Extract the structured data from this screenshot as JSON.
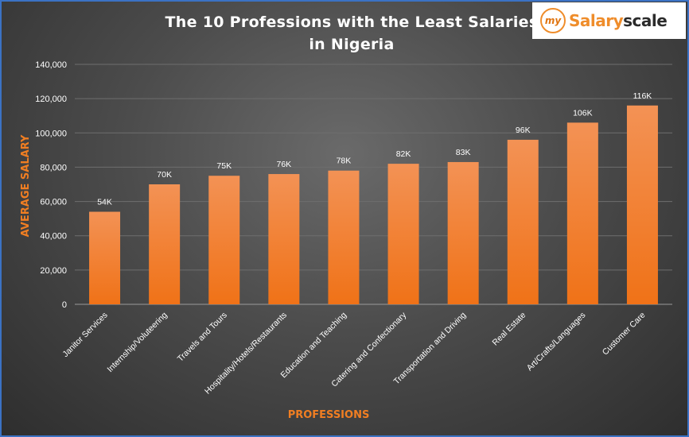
{
  "chart_data": {
    "type": "bar",
    "title_lines": [
      "The 10 Professions with the Least Salaries",
      "in Nigeria"
    ],
    "xlabel": "PROFESSIONS",
    "ylabel": "AVERAGE  SALARY",
    "categories": [
      "Janitor Services",
      "Internship/Voluteering",
      "Travels and Tours",
      "Hospitality/Hotels/Restaurants",
      "Education and Teaching",
      "Catering and Confectionary",
      "Transportation and Driving",
      "Real Estate",
      "Art/Crafts/Languages",
      "Customer Care"
    ],
    "values": [
      54000,
      70000,
      75000,
      76000,
      78000,
      82000,
      83000,
      96000,
      106000,
      116000
    ],
    "data_labels": [
      "54K",
      "70K",
      "75K",
      "76K",
      "78K",
      "82K",
      "83K",
      "96K",
      "106K",
      "116K"
    ],
    "ylim": [
      0,
      140000
    ],
    "yticks": [
      0,
      20000,
      40000,
      60000,
      80000,
      100000,
      120000,
      140000
    ],
    "ytick_labels": [
      "0",
      "20,000",
      "40,000",
      "60,000",
      "80,000",
      "100,000",
      "120,000",
      "140,000"
    ],
    "grid": true,
    "bar_color_top": "#f39255",
    "bar_color_bottom": "#f07217"
  },
  "logo": {
    "circle_text": "my",
    "name_part1": "Salary",
    "name_part2": "scale"
  }
}
